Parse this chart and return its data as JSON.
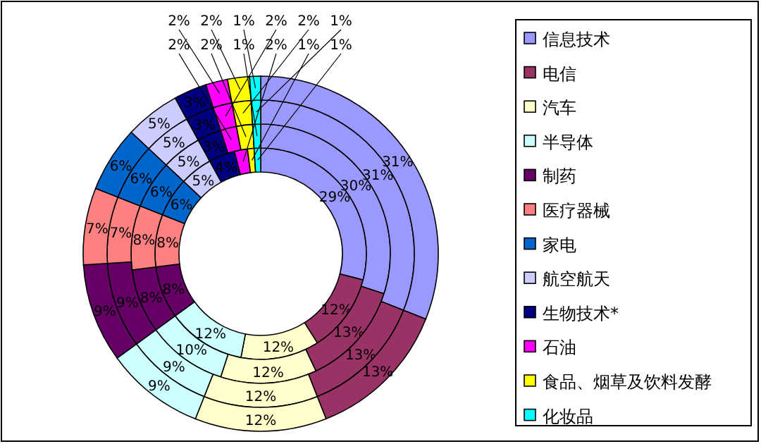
{
  "chart_data": {
    "type": "donut",
    "legend": "right",
    "categories": [
      "信息技术",
      "电信",
      "汽车",
      "半导体",
      "制药",
      "医疗器械",
      "家电",
      "航空航天",
      "生物技术*",
      "石油",
      "食品、烟草及饮料发酵",
      "化妆品"
    ],
    "colors": [
      "#9999ff",
      "#993366",
      "#ffffcc",
      "#ccffff",
      "#660066",
      "#ff8080",
      "#0066cc",
      "#ccccff",
      "#000080",
      "#ff00ff",
      "#ffff00",
      "#00ffff"
    ],
    "series": [
      {
        "values": [
          29,
          12,
          12,
          12,
          8,
          8,
          6,
          5,
          4,
          2,
          1,
          1
        ],
        "value_labels": [
          "29%",
          "12%",
          "12%",
          "12%",
          "8%",
          "8%",
          "6%",
          "5%",
          "4%",
          "2%",
          "1%",
          "1%"
        ]
      },
      {
        "values": [
          30,
          13,
          12,
          10,
          8,
          8,
          6,
          5,
          3,
          2,
          2,
          1
        ],
        "value_labels": [
          "30%",
          "13%",
          "12%",
          "10%",
          "8%",
          "8%",
          "6%",
          "5%",
          "3%",
          "2%",
          "2%",
          "1%"
        ]
      },
      {
        "values": [
          31,
          13,
          12,
          9,
          9,
          7,
          6,
          5,
          3,
          2,
          2,
          1
        ],
        "value_labels": [
          "31%",
          "13%",
          "12%",
          "9%",
          "9%",
          "7%",
          "6%",
          "5%",
          "3%",
          "2%",
          "2%",
          "1%"
        ]
      },
      {
        "values": [
          31,
          13,
          12,
          9,
          9,
          7,
          6,
          5,
          3,
          2,
          2,
          1
        ],
        "value_labels": [
          "31%",
          "13%",
          "12%",
          "9%",
          "9%",
          "7%",
          "6%",
          "5%",
          "3%",
          "2%",
          "2%",
          "1%"
        ]
      }
    ]
  }
}
